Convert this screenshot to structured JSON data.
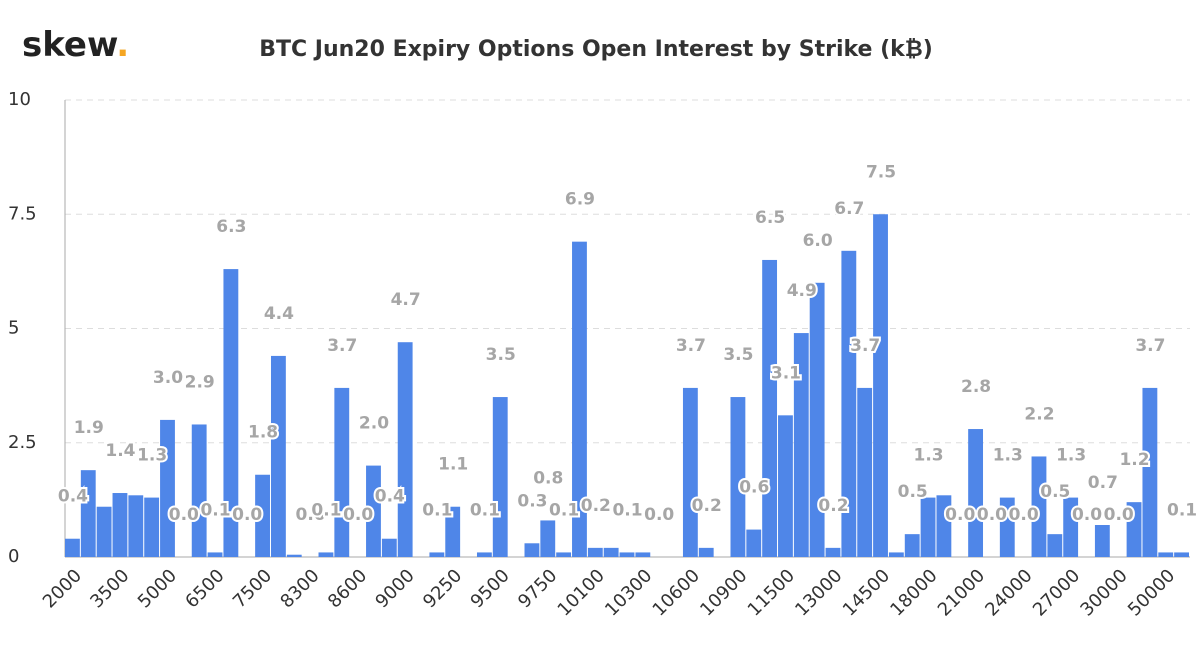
{
  "logo": "skew",
  "logo_dot": ".",
  "chart_data": {
    "type": "bar",
    "title": "BTC Jun20 Expiry Options Open Interest by Strike (k₿)",
    "categories": [
      "2000",
      null,
      null,
      "3500",
      null,
      null,
      "5000",
      null,
      null,
      "6500",
      null,
      null,
      "7500",
      null,
      null,
      "8300",
      null,
      null,
      "8600",
      null,
      null,
      "9000",
      null,
      null,
      "9250",
      null,
      null,
      "9500",
      null,
      null,
      "9750",
      null,
      null,
      "10100",
      null,
      null,
      "10300",
      null,
      null,
      "10600",
      null,
      null,
      "10900",
      null,
      null,
      "11500",
      null,
      null,
      "13000",
      null,
      null,
      "14500",
      null,
      null,
      "18000",
      null,
      null,
      "21000",
      null,
      null,
      "24000",
      null,
      null,
      "27000",
      null,
      null,
      "30000",
      null,
      null,
      "50000",
      null
    ],
    "values": [
      0.4,
      1.9,
      1.1,
      1.4,
      1.35,
      1.3,
      3.0,
      0.0,
      2.9,
      0.1,
      6.3,
      0.0,
      1.8,
      4.4,
      0.05,
      0.0,
      0.1,
      3.7,
      0.0,
      2.0,
      0.4,
      4.7,
      0.0,
      0.1,
      1.1,
      0.0,
      0.1,
      3.5,
      0.0,
      0.3,
      0.8,
      0.1,
      6.9,
      0.2,
      0.2,
      0.1,
      0.1,
      0.0,
      0.0,
      3.7,
      0.2,
      0.0,
      3.5,
      0.6,
      6.5,
      3.1,
      4.9,
      6.0,
      0.2,
      6.7,
      3.7,
      7.5,
      0.1,
      0.5,
      1.3,
      1.35,
      0.0,
      2.8,
      0.0,
      1.3,
      0.0,
      2.2,
      0.5,
      1.3,
      0.0,
      0.7,
      0.0,
      1.2,
      3.7,
      0.1,
      0.1
    ],
    "value_labels": [
      "0.4",
      "1.9",
      null,
      "1.4",
      null,
      "1.3",
      "3.0",
      "0.0",
      "2.9",
      "0.1",
      "6.3",
      "0.0",
      "1.8",
      "4.4",
      null,
      "0.0",
      "0.1",
      "3.7",
      "0.0",
      "2.0",
      "0.4",
      "4.7",
      null,
      "0.1",
      "1.1",
      null,
      "0.1",
      "3.5",
      null,
      "0.3",
      "0.8",
      "0.1",
      "6.9",
      "0.2",
      null,
      "0.1",
      null,
      "0.0",
      null,
      "3.7",
      "0.2",
      null,
      "3.5",
      "0.6",
      "6.5",
      "3.1",
      "4.9",
      "6.0",
      "0.2",
      "6.7",
      "3.7",
      "7.5",
      null,
      "0.5",
      "1.3",
      null,
      "0.0",
      "2.8",
      "0.0",
      "1.3",
      "0.0",
      "2.2",
      "0.5",
      "1.3",
      "0.0",
      "0.7",
      "0.0",
      "1.2",
      "3.7",
      null,
      "0.1"
    ],
    "color": "#4f86e8",
    "ylim": [
      0,
      10
    ],
    "yticks": [
      0,
      2.5,
      5,
      7.5,
      10
    ],
    "grid": true
  }
}
